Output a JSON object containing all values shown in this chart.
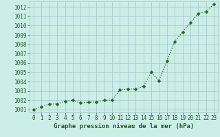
{
  "x": [
    0,
    1,
    2,
    3,
    4,
    5,
    6,
    7,
    8,
    9,
    10,
    11,
    12,
    13,
    14,
    15,
    16,
    17,
    18,
    19,
    20,
    21,
    22,
    23
  ],
  "y": [
    1001.0,
    1001.3,
    1001.6,
    1001.6,
    1001.9,
    1002.0,
    1001.7,
    1001.8,
    1001.8,
    1002.0,
    1002.0,
    1003.1,
    1003.2,
    1003.2,
    1003.5,
    1005.0,
    1004.1,
    1006.2,
    1008.3,
    1009.3,
    1010.3,
    1011.3,
    1011.5,
    1012.3
  ],
  "line_color": "#1a6e1a",
  "marker": "D",
  "marker_size": 2.5,
  "bg_color": "#cceee8",
  "grid_color": "#aacccc",
  "xlabel": "Graphe pression niveau de la mer (hPa)",
  "xlabel_color": "#1a5e1a",
  "xlabel_fontsize": 6.5,
  "tick_color": "#1a5e1a",
  "tick_fontsize": 5.5,
  "ylim": [
    1000.7,
    1012.6
  ],
  "yticks": [
    1001,
    1002,
    1003,
    1004,
    1005,
    1006,
    1007,
    1008,
    1009,
    1010,
    1011,
    1012
  ],
  "xlim": [
    -0.5,
    23.5
  ],
  "xticks": [
    0,
    1,
    2,
    3,
    4,
    5,
    6,
    7,
    8,
    9,
    10,
    11,
    12,
    13,
    14,
    15,
    16,
    17,
    18,
    19,
    20,
    21,
    22,
    23
  ]
}
